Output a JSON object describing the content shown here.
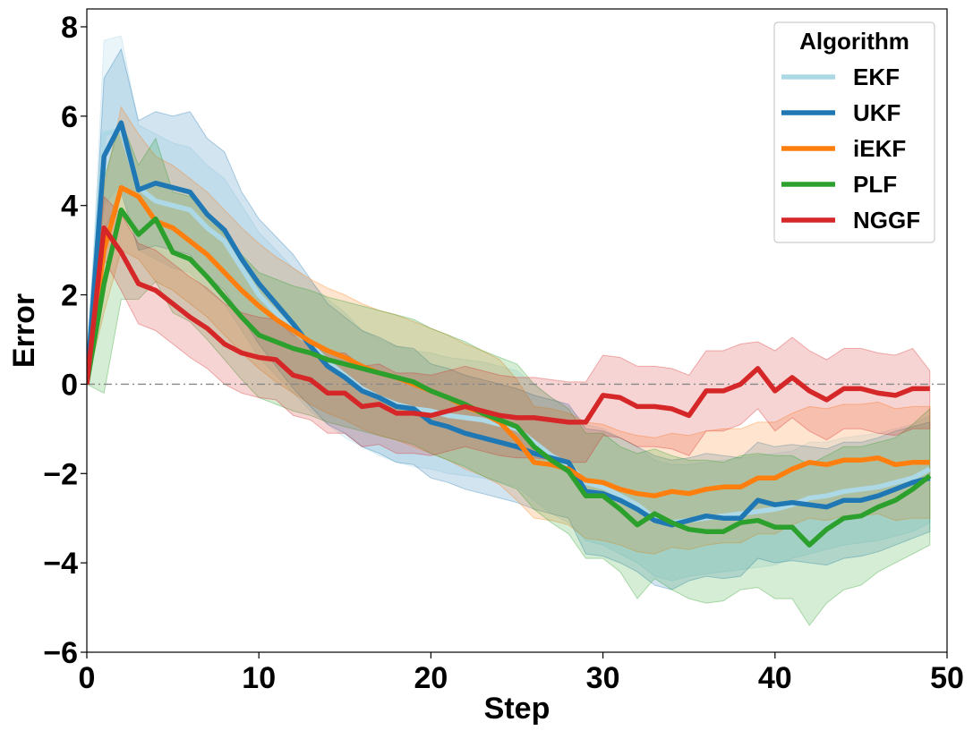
{
  "chart_data": {
    "type": "line",
    "title": "",
    "xlabel": "Step",
    "ylabel": "Error",
    "xlim": [
      0,
      50
    ],
    "ylim": [
      -6,
      8.4
    ],
    "xticks": [
      0,
      10,
      20,
      30,
      40,
      50
    ],
    "xtick_labels": [
      "0",
      "10",
      "20",
      "30",
      "40",
      "50"
    ],
    "yticks": [
      -6,
      -4,
      -2,
      0,
      2,
      4,
      6,
      8
    ],
    "ytick_labels": [
      "−6",
      "−4",
      "−2",
      "0",
      "2",
      "4",
      "6",
      "8"
    ],
    "grid": false,
    "reference_line": {
      "y": 0,
      "style": "dash-dot",
      "color": "#888888"
    },
    "legend": {
      "title": "Algorithm",
      "placement": "top-right"
    },
    "x": [
      0,
      1,
      2,
      3,
      4,
      5,
      6,
      7,
      8,
      9,
      10,
      11,
      12,
      13,
      14,
      15,
      16,
      17,
      18,
      19,
      20,
      21,
      22,
      23,
      24,
      25,
      26,
      27,
      28,
      29,
      30,
      31,
      32,
      33,
      34,
      35,
      36,
      37,
      38,
      39,
      40,
      41,
      42,
      43,
      44,
      45,
      46,
      47,
      48,
      49
    ],
    "series": [
      {
        "name": "EKF",
        "color": "#add8e6",
        "values": [
          0,
          5.6,
          5.7,
          4.4,
          4.1,
          4.0,
          3.9,
          3.5,
          3.2,
          2.6,
          2.0,
          1.6,
          1.2,
          0.9,
          0.5,
          0.2,
          -0.1,
          -0.3,
          -0.45,
          -0.55,
          -0.6,
          -0.7,
          -0.75,
          -0.8,
          -0.9,
          -1.0,
          -1.3,
          -1.6,
          -1.8,
          -2.2,
          -2.3,
          -2.5,
          -2.7,
          -3.0,
          -3.1,
          -3.05,
          -3.0,
          -2.95,
          -2.9,
          -2.85,
          -2.8,
          -2.7,
          -2.55,
          -2.5,
          -2.4,
          -2.35,
          -2.3,
          -2.2,
          -2.1,
          -1.9
        ],
        "lower": [
          0,
          4.0,
          4.5,
          3.0,
          2.8,
          2.6,
          2.5,
          2.1,
          1.8,
          1.2,
          0.6,
          0.2,
          -0.2,
          -0.6,
          -0.9,
          -1.2,
          -1.4,
          -1.6,
          -1.75,
          -1.85,
          -1.9,
          -2.0,
          -2.05,
          -2.1,
          -2.2,
          -2.3,
          -2.6,
          -2.9,
          -3.1,
          -3.5,
          -3.6,
          -3.8,
          -4.0,
          -4.3,
          -4.4,
          -4.3,
          -4.25,
          -4.2,
          -4.15,
          -4.1,
          -4.05,
          -3.9,
          -3.8,
          -3.7,
          -3.6,
          -3.55,
          -3.5,
          -3.4,
          -3.3,
          -3.1
        ],
        "upper": [
          0,
          7.7,
          7.8,
          5.8,
          5.6,
          5.4,
          5.3,
          4.9,
          4.6,
          4.0,
          3.4,
          3.0,
          2.6,
          2.3,
          1.9,
          1.6,
          1.2,
          1.0,
          0.85,
          0.75,
          0.7,
          0.6,
          0.55,
          0.5,
          0.4,
          0.3,
          0.0,
          -0.3,
          -0.5,
          -0.9,
          -1.0,
          -1.2,
          -1.4,
          -1.7,
          -1.8,
          -1.8,
          -1.75,
          -1.7,
          -1.65,
          -1.6,
          -1.55,
          -1.5,
          -1.3,
          -1.3,
          -1.2,
          -1.15,
          -1.1,
          -1.0,
          -0.9,
          -0.7
        ]
      },
      {
        "name": "UKF",
        "color": "#1f77b4",
        "values": [
          0,
          5.1,
          5.85,
          4.35,
          4.5,
          4.4,
          4.3,
          3.8,
          3.45,
          2.8,
          2.25,
          1.8,
          1.35,
          0.85,
          0.4,
          0.15,
          -0.15,
          -0.3,
          -0.5,
          -0.55,
          -0.85,
          -0.95,
          -1.1,
          -1.2,
          -1.3,
          -1.4,
          -1.55,
          -1.65,
          -1.75,
          -2.4,
          -2.45,
          -2.6,
          -2.8,
          -3.05,
          -3.15,
          -3.05,
          -2.95,
          -3.0,
          -3.0,
          -2.6,
          -2.7,
          -2.65,
          -2.7,
          -2.75,
          -2.6,
          -2.6,
          -2.5,
          -2.35,
          -2.2,
          -2.1
        ],
        "lower": [
          0,
          3.4,
          4.3,
          3.0,
          3.1,
          3.0,
          2.9,
          2.4,
          2.1,
          1.5,
          0.9,
          0.4,
          -0.1,
          -0.5,
          -0.9,
          -1.1,
          -1.4,
          -1.55,
          -1.75,
          -1.8,
          -2.1,
          -2.2,
          -2.35,
          -2.45,
          -2.55,
          -2.65,
          -2.8,
          -2.9,
          -3.0,
          -3.8,
          -3.85,
          -4.0,
          -4.2,
          -4.5,
          -4.6,
          -4.4,
          -4.3,
          -4.35,
          -4.3,
          -3.9,
          -4.0,
          -3.95,
          -4.0,
          -4.05,
          -3.9,
          -3.85,
          -3.75,
          -3.6,
          -3.45,
          -3.3
        ],
        "upper": [
          0,
          6.85,
          7.5,
          5.9,
          6.1,
          6.0,
          6.1,
          5.5,
          5.2,
          4.3,
          3.7,
          3.3,
          2.9,
          2.35,
          1.8,
          1.5,
          1.2,
          1.05,
          0.85,
          0.8,
          0.45,
          0.35,
          0.2,
          0.1,
          0.0,
          -0.1,
          -0.25,
          -0.35,
          -0.45,
          -1.0,
          -1.05,
          -1.2,
          -1.4,
          -1.6,
          -1.7,
          -1.65,
          -1.55,
          -1.6,
          -1.65,
          -1.3,
          -1.4,
          -1.35,
          -1.4,
          -1.45,
          -1.3,
          -1.3,
          -1.2,
          -1.05,
          -0.95,
          -0.85
        ]
      },
      {
        "name": "iEKF",
        "color": "#ff7f0e",
        "values": [
          0,
          3.0,
          4.4,
          4.2,
          3.65,
          3.5,
          3.2,
          2.9,
          2.5,
          2.1,
          1.75,
          1.45,
          1.2,
          0.95,
          0.75,
          0.6,
          0.4,
          0.25,
          0.15,
          0.0,
          -0.15,
          -0.3,
          -0.5,
          -0.65,
          -0.85,
          -1.25,
          -1.75,
          -1.8,
          -1.9,
          -2.15,
          -2.2,
          -2.35,
          -2.45,
          -2.5,
          -2.4,
          -2.45,
          -2.35,
          -2.3,
          -2.3,
          -2.1,
          -2.1,
          -1.9,
          -1.75,
          -1.8,
          -1.7,
          -1.7,
          -1.65,
          -1.8,
          -1.75,
          -1.75
        ],
        "lower": [
          0,
          1.6,
          3.0,
          2.8,
          2.3,
          2.1,
          1.8,
          1.5,
          1.1,
          0.7,
          0.35,
          0.05,
          -0.2,
          -0.45,
          -0.65,
          -0.8,
          -1.0,
          -1.15,
          -1.25,
          -1.4,
          -1.55,
          -1.7,
          -1.9,
          -2.05,
          -2.25,
          -2.6,
          -3.0,
          -3.05,
          -3.15,
          -3.45,
          -3.5,
          -3.6,
          -3.75,
          -3.8,
          -3.65,
          -3.7,
          -3.6,
          -3.55,
          -3.55,
          -3.35,
          -3.35,
          -3.15,
          -3.0,
          -3.05,
          -2.95,
          -2.95,
          -2.9,
          -3.05,
          -3.0,
          -3.0
        ],
        "upper": [
          0,
          4.4,
          6.2,
          5.6,
          5.1,
          4.9,
          4.6,
          4.3,
          3.9,
          3.5,
          3.15,
          2.85,
          2.6,
          2.35,
          2.15,
          2.0,
          1.8,
          1.65,
          1.55,
          1.4,
          1.25,
          1.1,
          0.9,
          0.75,
          0.55,
          0.1,
          -0.5,
          -0.55,
          -0.65,
          -0.85,
          -0.9,
          -1.05,
          -1.15,
          -1.2,
          -1.1,
          -1.15,
          -1.05,
          -1.0,
          -1.0,
          -0.85,
          -0.85,
          -0.65,
          -0.5,
          -0.55,
          -0.45,
          -0.45,
          -0.4,
          -0.55,
          -0.5,
          -0.5
        ]
      },
      {
        "name": "PLF",
        "color": "#2ca02c",
        "values": [
          0,
          2.25,
          3.9,
          3.35,
          3.7,
          2.95,
          2.8,
          2.4,
          1.95,
          1.5,
          1.1,
          0.95,
          0.8,
          0.7,
          0.55,
          0.45,
          0.35,
          0.25,
          0.15,
          0.05,
          -0.15,
          -0.3,
          -0.45,
          -0.65,
          -0.8,
          -0.95,
          -1.4,
          -1.7,
          -1.95,
          -2.5,
          -2.5,
          -2.8,
          -3.15,
          -2.9,
          -3.1,
          -3.25,
          -3.3,
          -3.3,
          -3.1,
          -3.05,
          -3.2,
          -3.2,
          -3.6,
          -3.25,
          -3.0,
          -2.95,
          -2.75,
          -2.6,
          -2.35,
          -2.05
        ],
        "lower": [
          0,
          -0.2,
          1.9,
          1.9,
          2.3,
          1.6,
          1.4,
          1.0,
          0.55,
          0.1,
          -0.3,
          -0.45,
          -0.6,
          -0.7,
          -0.85,
          -0.95,
          -1.05,
          -1.15,
          -1.25,
          -1.35,
          -1.55,
          -1.7,
          -1.85,
          -2.05,
          -2.2,
          -2.35,
          -2.8,
          -3.1,
          -3.35,
          -3.9,
          -3.9,
          -4.2,
          -4.8,
          -4.35,
          -4.6,
          -4.8,
          -4.9,
          -4.85,
          -4.6,
          -4.55,
          -4.8,
          -4.8,
          -5.4,
          -4.9,
          -4.6,
          -4.5,
          -4.2,
          -4.0,
          -3.8,
          -3.6
        ],
        "upper": [
          0,
          4.6,
          5.9,
          4.9,
          5.5,
          4.3,
          4.2,
          3.8,
          3.35,
          2.9,
          2.5,
          2.35,
          2.2,
          2.1,
          1.95,
          1.85,
          1.75,
          1.65,
          1.55,
          1.45,
          1.25,
          1.1,
          0.95,
          0.75,
          0.6,
          0.45,
          0.0,
          -0.3,
          -0.55,
          -1.1,
          -1.1,
          -1.4,
          -1.55,
          -1.45,
          -1.6,
          -1.7,
          -1.7,
          -1.75,
          -1.6,
          -1.55,
          -1.6,
          -1.6,
          -1.8,
          -1.6,
          -1.4,
          -1.4,
          -1.3,
          -1.2,
          -0.9,
          -0.55
        ]
      },
      {
        "name": "NGGF",
        "color": "#d62728",
        "values": [
          0,
          3.5,
          2.95,
          2.25,
          2.1,
          1.8,
          1.5,
          1.25,
          0.9,
          0.7,
          0.6,
          0.55,
          0.2,
          0.1,
          -0.2,
          -0.2,
          -0.5,
          -0.45,
          -0.65,
          -0.65,
          -0.7,
          -0.6,
          -0.5,
          -0.6,
          -0.7,
          -0.75,
          -0.75,
          -0.8,
          -0.85,
          -0.85,
          -0.25,
          -0.3,
          -0.5,
          -0.5,
          -0.55,
          -0.7,
          -0.15,
          -0.15,
          0.0,
          0.35,
          -0.15,
          0.15,
          -0.15,
          -0.35,
          -0.1,
          -0.1,
          -0.2,
          -0.25,
          -0.1,
          -0.1
        ],
        "lower": [
          0,
          2.8,
          2.1,
          1.35,
          1.2,
          0.9,
          0.6,
          0.35,
          0.0,
          -0.2,
          -0.3,
          -0.35,
          -0.7,
          -0.8,
          -1.1,
          -1.1,
          -1.4,
          -1.35,
          -1.55,
          -1.55,
          -1.6,
          -1.5,
          -1.4,
          -1.5,
          -1.6,
          -1.65,
          -1.65,
          -1.7,
          -1.75,
          -1.75,
          -1.15,
          -1.2,
          -1.4,
          -1.4,
          -1.45,
          -1.6,
          -1.05,
          -1.05,
          -0.9,
          -0.55,
          -1.05,
          -0.75,
          -1.05,
          -1.25,
          -1.0,
          -1.0,
          -1.1,
          -1.15,
          -1.0,
          -1.0
        ],
        "upper": [
          0,
          4.2,
          3.8,
          3.15,
          3.0,
          2.7,
          2.4,
          2.15,
          1.8,
          1.6,
          1.5,
          1.45,
          1.1,
          1.0,
          0.7,
          0.7,
          0.4,
          0.45,
          0.25,
          0.25,
          0.2,
          0.3,
          0.4,
          0.3,
          0.2,
          0.15,
          0.15,
          0.1,
          0.05,
          0.05,
          0.65,
          0.6,
          0.4,
          0.4,
          0.35,
          0.2,
          0.75,
          0.75,
          0.9,
          0.95,
          0.75,
          1.05,
          0.75,
          0.55,
          0.8,
          0.8,
          0.7,
          0.65,
          0.8,
          0.3
        ]
      }
    ]
  }
}
